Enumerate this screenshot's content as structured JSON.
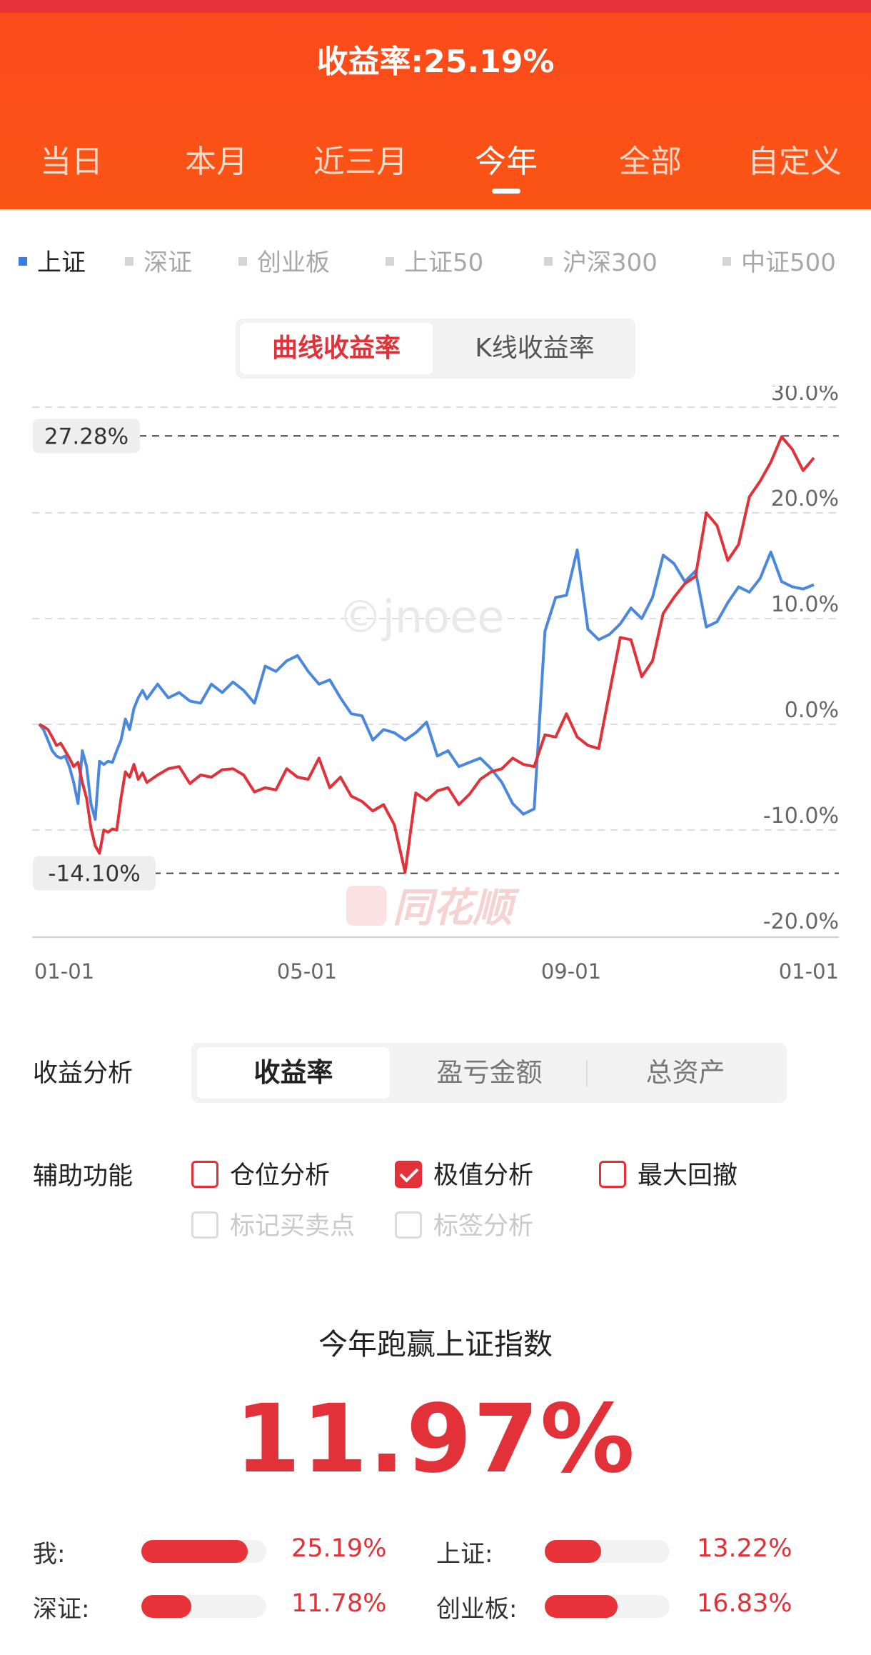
{
  "header": {
    "title": "收益率:25.19%",
    "tabs": [
      "当日",
      "本月",
      "近三月",
      "今年",
      "全部",
      "自定义"
    ],
    "active_tab": "今年"
  },
  "index_legend": {
    "items": [
      "上证",
      "深证",
      "创业板",
      "上证50",
      "沪深300",
      "中证500"
    ],
    "active": "上证"
  },
  "chart_mode": {
    "options": [
      "曲线收益率",
      "K线收益率"
    ],
    "active": "曲线收益率"
  },
  "chart_data": {
    "type": "line",
    "x_ticks": [
      "01-01",
      "05-01",
      "09-01",
      "01-01"
    ],
    "y_ticks": [
      "30.0%",
      "20.0%",
      "10.0%",
      "0.0%",
      "-10.0%",
      "-20.0%"
    ],
    "ylim": [
      -20,
      30
    ],
    "max_label": "27.28%",
    "min_label": "-14.10%",
    "max_value": 27.28,
    "min_value": -14.1,
    "grid": true,
    "colors": {
      "mine": "#e33139",
      "index": "#4a88e0"
    },
    "series": [
      {
        "x": [
          0,
          2,
          4,
          6,
          8,
          10,
          12,
          14,
          16,
          18,
          20,
          22,
          24,
          26,
          28,
          30,
          32,
          34,
          36,
          38,
          40,
          42,
          44,
          46,
          48,
          50,
          55,
          60,
          65,
          70,
          75,
          80,
          85,
          90,
          95,
          100,
          105,
          110,
          115,
          120,
          125,
          130,
          135,
          140,
          145,
          150,
          155,
          160,
          165,
          170,
          175,
          180,
          185,
          190,
          195,
          200,
          205,
          210,
          215,
          220,
          225,
          230,
          235,
          240,
          245,
          250,
          255,
          260,
          265,
          270,
          275,
          280,
          285,
          290,
          295,
          300,
          305,
          310,
          315,
          320,
          325,
          330,
          335,
          340,
          345,
          350,
          355,
          360
        ],
        "values": [
          0,
          -0.2,
          -0.5,
          -1.2,
          -2.0,
          -1.8,
          -2.5,
          -3.2,
          -4.0,
          -3.6,
          -5.5,
          -7.0,
          -9.8,
          -11.5,
          -12.2,
          -10.0,
          -10.2,
          -9.9,
          -10.0,
          -7.0,
          -4.5,
          -5.0,
          -3.8,
          -5.2,
          -4.6,
          -5.5,
          -4.8,
          -4.2,
          -4.0,
          -5.6,
          -4.8,
          -5.0,
          -4.3,
          -4.2,
          -4.8,
          -6.4,
          -6.0,
          -6.2,
          -4.2,
          -5.0,
          -5.2,
          -3.2,
          -6.0,
          -5.0,
          -6.8,
          -7.3,
          -8.2,
          -7.6,
          -9.5,
          -14.0,
          -6.5,
          -7.2,
          -6.3,
          -6.0,
          -7.6,
          -6.6,
          -5.2,
          -4.5,
          -4.2,
          -3.2,
          -3.8,
          -4.0,
          -1.0,
          -1.2,
          1.0,
          -1.2,
          -2.0,
          -2.3,
          3.0,
          8.2,
          8.0,
          4.5,
          6.0,
          10.5,
          12.0,
          13.3,
          14.0,
          20.0,
          18.8,
          15.5,
          17.0,
          21.5,
          23.0,
          24.8,
          27.2,
          26.0,
          24.0,
          25.2
        ]
      },
      {
        "x": [
          0,
          2,
          4,
          6,
          8,
          10,
          12,
          14,
          16,
          18,
          20,
          22,
          24,
          26,
          28,
          30,
          32,
          34,
          36,
          38,
          40,
          42,
          44,
          46,
          48,
          50,
          55,
          60,
          65,
          70,
          75,
          80,
          85,
          90,
          95,
          100,
          105,
          110,
          115,
          120,
          125,
          130,
          135,
          140,
          145,
          150,
          155,
          160,
          165,
          170,
          175,
          180,
          185,
          190,
          195,
          200,
          205,
          210,
          215,
          220,
          225,
          230,
          235,
          240,
          245,
          250,
          255,
          260,
          265,
          270,
          275,
          280,
          285,
          290,
          295,
          300,
          305,
          310,
          315,
          320,
          325,
          330,
          335,
          340,
          345,
          350,
          355,
          360
        ],
        "values": [
          0,
          -0.5,
          -1.5,
          -2.5,
          -3.0,
          -3.2,
          -3.0,
          -4.0,
          -5.5,
          -7.5,
          -2.5,
          -4.0,
          -7.5,
          -9.0,
          -3.5,
          -3.8,
          -3.5,
          -3.6,
          -2.5,
          -1.5,
          0.5,
          -0.5,
          1.5,
          2.5,
          3.2,
          2.4,
          3.8,
          2.5,
          3.0,
          2.2,
          2.0,
          3.8,
          3.0,
          4.0,
          3.2,
          2.0,
          5.5,
          5.0,
          6.0,
          6.5,
          5.0,
          3.8,
          4.2,
          2.5,
          1.0,
          0.8,
          -1.5,
          -0.5,
          -0.8,
          -1.5,
          -0.8,
          0.2,
          -3.0,
          -2.5,
          -4.0,
          -3.6,
          -3.2,
          -4.2,
          -5.5,
          -7.5,
          -8.5,
          -8.0,
          8.8,
          12.0,
          12.2,
          16.5,
          9.0,
          8.0,
          8.5,
          9.5,
          11.0,
          10.0,
          12.0,
          16.0,
          15.2,
          13.5,
          14.5,
          9.2,
          9.7,
          11.5,
          13.0,
          12.5,
          13.8,
          16.3,
          13.5,
          13.0,
          12.8,
          13.2
        ]
      }
    ]
  },
  "watermarks": {
    "jnoee": "©jnoee",
    "brand": "同花顺"
  },
  "analysis": {
    "label": "收益分析",
    "options": [
      "收益率",
      "盈亏金额",
      "总资产"
    ],
    "active": "收益率"
  },
  "aux": {
    "label": "辅助功能",
    "items": [
      {
        "label": "仓位分析",
        "checked": false,
        "disabled": false
      },
      {
        "label": "极值分析",
        "checked": true,
        "disabled": false
      },
      {
        "label": "最大回撤",
        "checked": false,
        "disabled": false
      },
      {
        "label": "标记买卖点",
        "checked": false,
        "disabled": true
      },
      {
        "label": "标签分析",
        "checked": false,
        "disabled": true
      }
    ]
  },
  "summary": {
    "title": "今年跑赢上证指数",
    "value": "11.97%",
    "stats": [
      {
        "label": "我:",
        "value": "25.19%",
        "fill": 0.85
      },
      {
        "label": "上证:",
        "value": "13.22%",
        "fill": 0.45
      },
      {
        "label": "深证:",
        "value": "11.78%",
        "fill": 0.4
      },
      {
        "label": "创业板:",
        "value": "16.83%",
        "fill": 0.58
      }
    ]
  }
}
